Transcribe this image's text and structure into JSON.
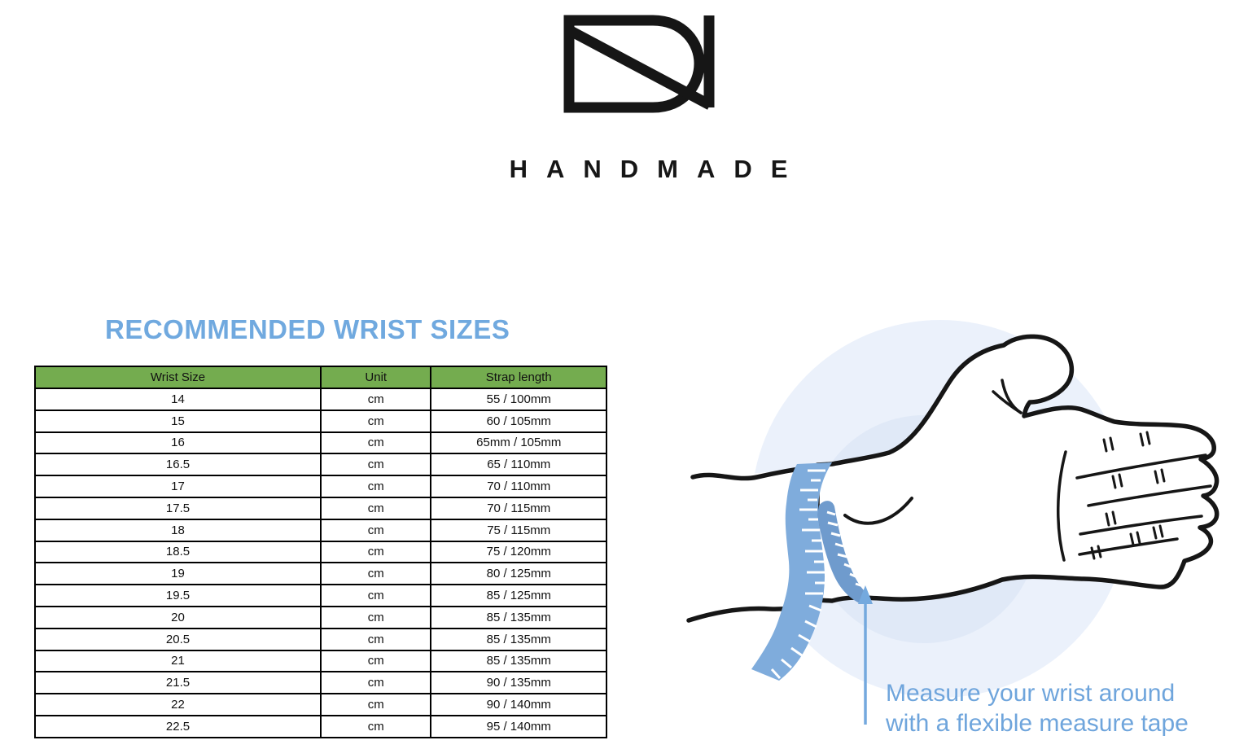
{
  "brand": {
    "logo_icon": "dn-monogram-icon",
    "name": "H A N D M A D E",
    "name_plain": "HANDMADE"
  },
  "heading": {
    "title": "RECOMMENDED WRIST SIZES"
  },
  "size_table": {
    "columns": [
      "Wrist Size",
      "Unit",
      "Strap length"
    ],
    "rows": [
      [
        "14",
        "cm",
        "55 / 100mm"
      ],
      [
        "15",
        "cm",
        "60 / 105mm"
      ],
      [
        "16",
        "cm",
        "65mm / 105mm"
      ],
      [
        "16.5",
        "cm",
        "65 / 110mm"
      ],
      [
        "17",
        "cm",
        "70 / 110mm"
      ],
      [
        "17.5",
        "cm",
        "70 / 115mm"
      ],
      [
        "18",
        "cm",
        "75 / 115mm"
      ],
      [
        "18.5",
        "cm",
        "75 / 120mm"
      ],
      [
        "19",
        "cm",
        "80 / 125mm"
      ],
      [
        "19.5",
        "cm",
        "85 / 125mm"
      ],
      [
        "20",
        "cm",
        "85 / 135mm"
      ],
      [
        "20.5",
        "cm",
        "85 / 135mm"
      ],
      [
        "21",
        "cm",
        "85 / 135mm"
      ],
      [
        "21.5",
        "cm",
        "90 / 135mm"
      ],
      [
        "22",
        "cm",
        "90 / 140mm"
      ],
      [
        "22.5",
        "cm",
        "95 / 140mm"
      ]
    ]
  },
  "illustration": {
    "description": "hand with measuring tape around wrist",
    "caption_line1": "Measure your wrist around",
    "caption_line2": "with a flexible measure tape"
  },
  "colors": {
    "heading_blue": "#70A9DF",
    "caption_blue": "#6FA5DC",
    "table_header_green": "#74AC4F",
    "tape_blue": "#7FACDC",
    "tape_blue_dark": "#6F9BCD",
    "arrow_blue": "#74A9DE",
    "circle_outer": "#EBF1FB",
    "circle_inner": "#E0E9F7",
    "ink": "#161616"
  }
}
